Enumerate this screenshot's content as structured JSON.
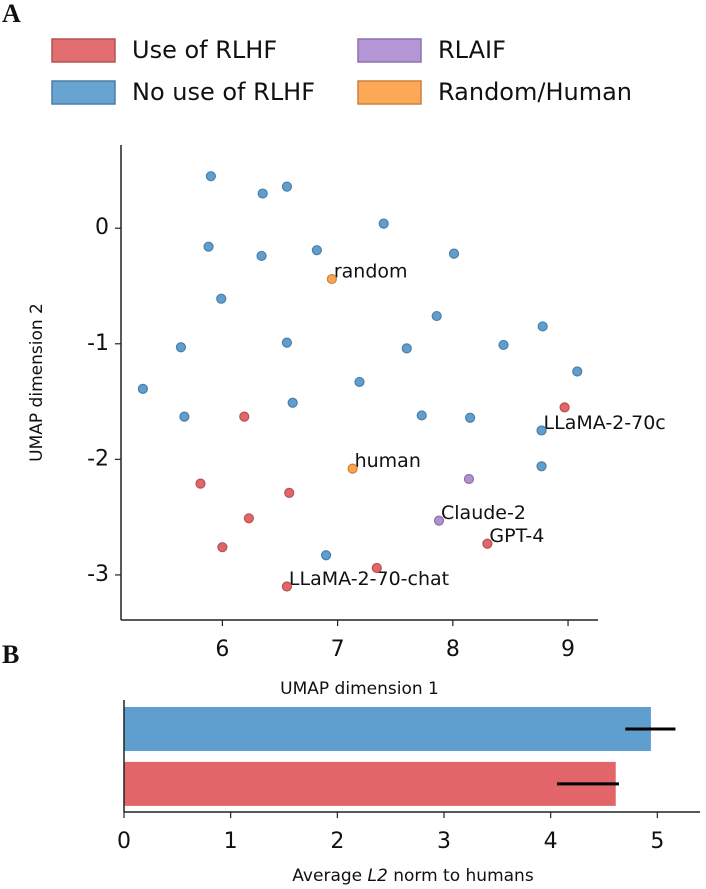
{
  "chart_data": [
    {
      "type": "scatter",
      "panel_label": "A",
      "xlabel": "UMAP dimension 1",
      "ylabel": "UMAP dimension 2",
      "xlim": [
        5.12,
        9.26
      ],
      "ylim": [
        -3.39,
        0.72
      ],
      "xticks": [
        6,
        7,
        8,
        9
      ],
      "yticks": [
        0,
        -1,
        -2,
        -3
      ],
      "legend": "top",
      "series": [
        {
          "name": "Use of RLHF",
          "color": "#e26669",
          "x": [
            6.19,
            8.97,
            5.81,
            6.58,
            6.23,
            6.0,
            7.34,
            8.3,
            6.56
          ],
          "values": [
            -1.63,
            -1.55,
            -2.21,
            -2.29,
            -2.51,
            -2.76,
            -2.94,
            -2.73,
            -3.1
          ],
          "labels": [
            null,
            null,
            null,
            null,
            null,
            null,
            null,
            "GPT-4",
            "LLaMA-2-70-chat"
          ]
        },
        {
          "name": "No use of RLHF",
          "color": "#5f9fcf",
          "x": [
            5.9,
            6.35,
            6.56,
            7.4,
            5.88,
            6.34,
            6.82,
            8.01,
            5.99,
            7.86,
            8.78,
            5.64,
            6.56,
            7.6,
            8.44,
            5.31,
            7.19,
            9.08,
            5.67,
            6.61,
            7.73,
            8.15,
            8.77,
            8.77,
            6.9
          ],
          "values": [
            0.45,
            0.3,
            0.36,
            0.04,
            -0.16,
            -0.24,
            -0.19,
            -0.22,
            -0.61,
            -0.76,
            -0.85,
            -1.03,
            -0.99,
            -1.04,
            -1.01,
            -1.39,
            -1.33,
            -1.24,
            -1.63,
            -1.51,
            -1.62,
            -1.64,
            -1.75,
            -2.06,
            -2.83
          ],
          "labels": [
            null,
            null,
            null,
            null,
            null,
            null,
            null,
            null,
            null,
            null,
            null,
            null,
            null,
            null,
            null,
            null,
            null,
            null,
            null,
            null,
            null,
            null,
            "LLaMA-2-70c",
            null,
            null
          ]
        },
        {
          "name": "RLAIF",
          "color": "#b08fd3",
          "x": [
            8.14,
            7.88
          ],
          "values": [
            -2.17,
            -2.53
          ],
          "labels": [
            null,
            "Claude-2"
          ]
        },
        {
          "name": "Random/Human",
          "color": "#fda34d",
          "x": [
            6.95,
            7.13
          ],
          "values": [
            -0.44,
            -2.08
          ],
          "labels": [
            "random",
            "human"
          ]
        }
      ]
    },
    {
      "type": "hbar",
      "panel_label": "B",
      "xlabel": [
        "Average ",
        "L2",
        " norm to humans"
      ],
      "xlim": [
        0,
        5.4
      ],
      "xticks": [
        0,
        1,
        2,
        3,
        4,
        5
      ],
      "categories": [
        null,
        null
      ],
      "values": [
        4.94,
        4.61
      ],
      "colors": [
        "#5f9fcf",
        "#e26669"
      ],
      "ci": [
        [
          4.7,
          5.17
        ],
        [
          4.06,
          4.64
        ]
      ]
    }
  ]
}
